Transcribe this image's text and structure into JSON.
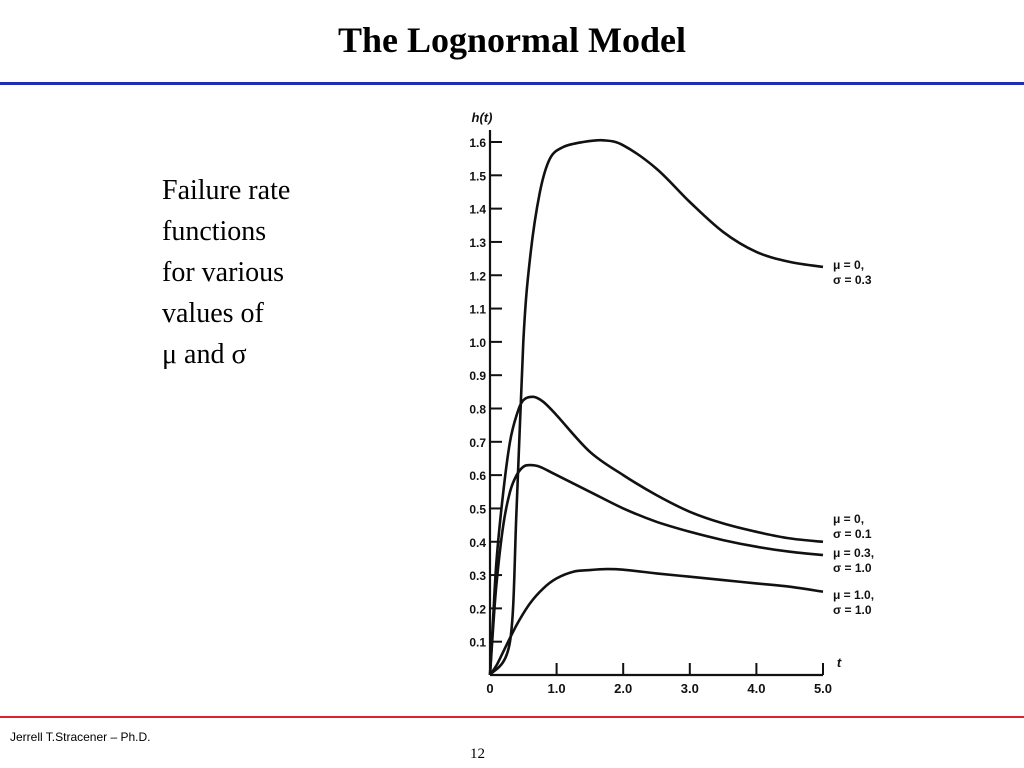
{
  "slide": {
    "title": "The Lognormal Model",
    "caption_lines": [
      "Failure rate",
      "functions",
      "for various",
      "values of",
      "μ and σ"
    ],
    "footer_author": "Jerrell T.Stracener – Ph.D.",
    "page_number": "12",
    "colors": {
      "title_rule": "#1f2db8",
      "footer_rule": "#d9252a"
    }
  },
  "chart_data": {
    "type": "line",
    "ylabel": "h(t)",
    "xlabel": "t",
    "xlim": [
      0,
      5.0
    ],
    "ylim": [
      0,
      1.6
    ],
    "x_ticks": [
      "0",
      "1.0",
      "2.0",
      "3.0",
      "4.0",
      "5.0"
    ],
    "y_ticks": [
      "0.1",
      "0.2",
      "0.3",
      "0.4",
      "0.5",
      "0.6",
      "0.7",
      "0.8",
      "0.9",
      "1.0",
      "1.1",
      "1.2",
      "1.3",
      "1.4",
      "1.5",
      "1.6"
    ],
    "grid": false,
    "series": [
      {
        "name": "μ = 0, σ = 0.3",
        "label_lines": [
          "μ = 0,",
          "σ = 0.3"
        ],
        "x": [
          0,
          0.3,
          0.4,
          0.5,
          0.6,
          0.75,
          0.9,
          1.1,
          1.4,
          1.7,
          2.0,
          2.5,
          3.0,
          3.5,
          4.0,
          4.5,
          5.0
        ],
        "y": [
          0,
          0.1,
          0.5,
          1.0,
          1.25,
          1.45,
          1.55,
          1.585,
          1.6,
          1.605,
          1.59,
          1.52,
          1.42,
          1.33,
          1.27,
          1.24,
          1.225
        ]
      },
      {
        "name": "μ = 0, σ = 0.1",
        "label_lines": [
          "μ = 0,",
          "σ = 0.1"
        ],
        "x": [
          0,
          0.05,
          0.1,
          0.2,
          0.3,
          0.4,
          0.5,
          0.65,
          0.8,
          1.0,
          1.5,
          2.0,
          2.5,
          3.0,
          3.5,
          4.0,
          4.5,
          5.0
        ],
        "y": [
          0,
          0.18,
          0.35,
          0.55,
          0.7,
          0.78,
          0.825,
          0.835,
          0.82,
          0.78,
          0.67,
          0.6,
          0.54,
          0.49,
          0.455,
          0.43,
          0.41,
          0.4
        ]
      },
      {
        "name": "μ = 0.3, σ = 1.0",
        "label_lines": [
          "μ = 0.3,",
          "σ = 1.0"
        ],
        "x": [
          0,
          0.05,
          0.1,
          0.2,
          0.3,
          0.4,
          0.5,
          0.6,
          0.75,
          1.0,
          1.5,
          2.0,
          2.5,
          3.0,
          3.5,
          4.0,
          4.5,
          5.0
        ],
        "y": [
          0,
          0.15,
          0.28,
          0.45,
          0.55,
          0.6,
          0.625,
          0.63,
          0.625,
          0.6,
          0.55,
          0.5,
          0.46,
          0.43,
          0.405,
          0.385,
          0.37,
          0.36
        ]
      },
      {
        "name": "μ = 1.0, σ = 1.0",
        "label_lines": [
          "μ = 1.0,",
          "σ = 1.0"
        ],
        "x": [
          0,
          0.1,
          0.2,
          0.4,
          0.6,
          0.8,
          1.0,
          1.25,
          1.5,
          1.75,
          2.0,
          2.5,
          3.0,
          3.5,
          4.0,
          4.5,
          5.0
        ],
        "y": [
          0,
          0.03,
          0.07,
          0.15,
          0.215,
          0.26,
          0.29,
          0.31,
          0.315,
          0.318,
          0.316,
          0.305,
          0.295,
          0.285,
          0.275,
          0.265,
          0.25
        ]
      }
    ]
  }
}
